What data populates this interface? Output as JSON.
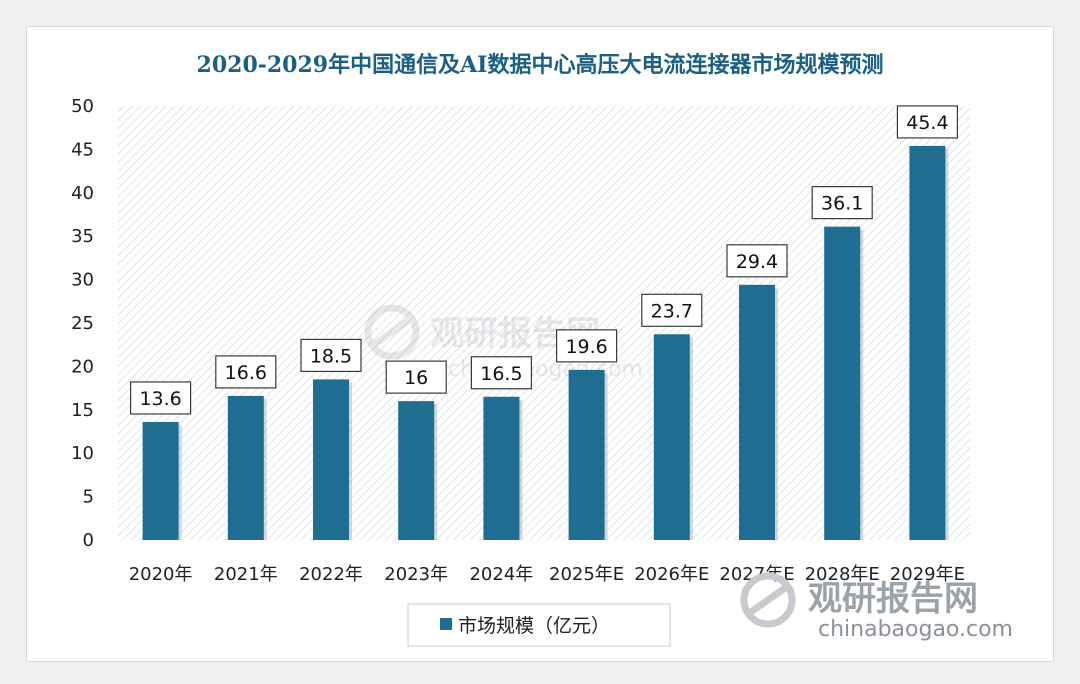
{
  "chart_data": {
    "type": "bar",
    "title": "2020-2029年中国通信及AI数据中心高压大电流连接器市场规模预测",
    "categories": [
      "2020年",
      "2021年",
      "2022年",
      "2023年",
      "2024年",
      "2025年E",
      "2026年E",
      "2027年E",
      "2028年E",
      "2029年E"
    ],
    "series": [
      {
        "name": "市场规模（亿元）",
        "values": [
          13.6,
          16.6,
          18.5,
          16,
          16.5,
          19.6,
          23.7,
          29.4,
          36.1,
          45.4
        ]
      }
    ],
    "ylim": [
      0,
      50
    ],
    "yticks": [
      0,
      5,
      10,
      15,
      20,
      25,
      30,
      35,
      40,
      45,
      50
    ],
    "xlabel": "",
    "ylabel": "",
    "legend": "bottom-center",
    "grid": false,
    "colors": {
      "bar": "#1f6e92",
      "title": "#1a5f86",
      "plot_bg": "#eef2f5"
    }
  },
  "watermark": {
    "center_text": "观研报告网",
    "center_url": "chinabaogao.com",
    "corner_text": "观研报告网",
    "corner_url": "chinabaogao.com"
  }
}
